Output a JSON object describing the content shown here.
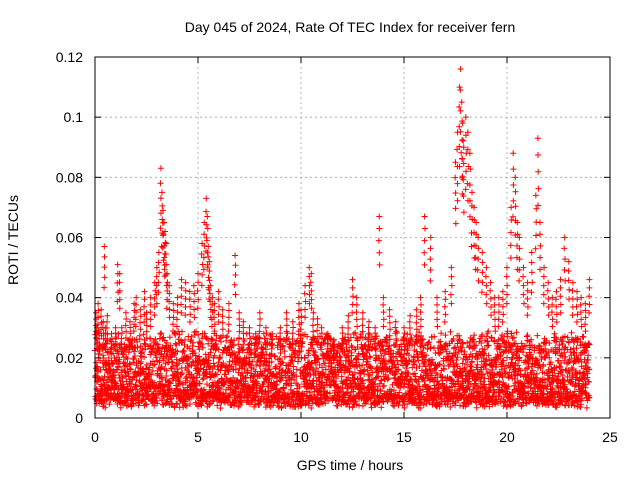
{
  "chart_data": {
    "type": "scatter",
    "title": "Day 045 of 2024, Rate Of TEC Index for receiver fern",
    "xlabel": "GPS time / hours",
    "ylabel": "ROTI / TECUs",
    "xlim": [
      0,
      25
    ],
    "ylim": [
      0,
      0.12
    ],
    "xticks": [
      0,
      5,
      10,
      15,
      20,
      25
    ],
    "xtick_labels": [
      "0",
      "5",
      "10",
      "15",
      "20",
      "25"
    ],
    "yticks": [
      0,
      0.02,
      0.04,
      0.06,
      0.08,
      0.1,
      0.12
    ],
    "ytick_labels": [
      "0",
      "0.02",
      "0.04",
      "0.06",
      "0.08",
      "0.1",
      "0.12"
    ],
    "grid": true,
    "marker": "+",
    "color": "#ff0000",
    "series": [
      {
        "x": [
          0.05,
          0.1,
          0.15,
          0.2,
          0.3,
          0.4,
          0.45,
          0.5,
          0.6,
          0.8,
          1.0,
          1.1,
          1.2,
          1.3,
          1.5,
          1.7,
          1.9,
          2.0,
          2.2,
          2.4,
          2.5,
          2.7,
          2.9,
          3.0,
          3.1,
          3.2,
          3.25,
          3.3,
          3.35,
          3.4,
          3.45,
          3.5,
          3.6,
          3.8,
          4.0,
          4.2,
          4.4,
          4.6,
          4.8,
          5.0,
          5.2,
          5.3,
          5.4,
          5.45,
          5.5,
          5.55,
          5.6,
          5.7,
          5.8,
          6.0,
          6.2,
          6.5,
          6.8,
          7.0,
          7.2,
          7.5,
          7.8,
          8.0,
          8.3,
          8.6,
          9.0,
          9.3,
          9.6,
          9.9,
          10.0,
          10.2,
          10.4,
          10.5,
          10.6,
          10.8,
          11.0,
          11.3,
          11.6,
          12.0,
          12.3,
          12.5,
          12.7,
          13.0,
          13.3,
          13.6,
          13.8,
          14.0,
          14.3,
          14.6,
          15.0,
          15.3,
          15.6,
          15.8,
          16.0,
          16.3,
          16.6,
          17.0,
          17.3,
          17.5,
          17.6,
          17.7,
          17.75,
          17.8,
          17.85,
          17.9,
          18.0,
          18.1,
          18.2,
          18.3,
          18.4,
          18.5,
          18.6,
          18.8,
          19.0,
          19.2,
          19.4,
          19.6,
          19.8,
          20.0,
          20.2,
          20.3,
          20.4,
          20.5,
          20.6,
          20.8,
          21.0,
          21.2,
          21.4,
          21.5,
          21.6,
          21.8,
          22.0,
          22.2,
          22.4,
          22.6,
          22.8,
          23.0,
          23.2,
          23.4,
          23.6,
          23.8,
          24.0
        ],
        "y": [
          0.035,
          0.03,
          0.038,
          0.028,
          0.036,
          0.032,
          0.057,
          0.03,
          0.034,
          0.028,
          0.03,
          0.051,
          0.048,
          0.03,
          0.035,
          0.032,
          0.038,
          0.04,
          0.036,
          0.042,
          0.035,
          0.04,
          0.045,
          0.05,
          0.055,
          0.083,
          0.075,
          0.069,
          0.065,
          0.062,
          0.058,
          0.048,
          0.044,
          0.038,
          0.04,
          0.046,
          0.045,
          0.042,
          0.044,
          0.048,
          0.058,
          0.065,
          0.073,
          0.067,
          0.057,
          0.052,
          0.044,
          0.04,
          0.038,
          0.042,
          0.036,
          0.038,
          0.054,
          0.035,
          0.032,
          0.03,
          0.028,
          0.035,
          0.03,
          0.028,
          0.03,
          0.035,
          0.032,
          0.038,
          0.036,
          0.044,
          0.05,
          0.048,
          0.035,
          0.033,
          0.03,
          0.028,
          0.026,
          0.03,
          0.034,
          0.046,
          0.04,
          0.035,
          0.032,
          0.03,
          0.067,
          0.04,
          0.036,
          0.032,
          0.03,
          0.034,
          0.036,
          0.04,
          0.067,
          0.06,
          0.04,
          0.042,
          0.05,
          0.085,
          0.095,
          0.11,
          0.116,
          0.105,
          0.098,
          0.09,
          0.1,
          0.095,
          0.088,
          0.075,
          0.07,
          0.065,
          0.06,
          0.055,
          0.05,
          0.045,
          0.04,
          0.04,
          0.042,
          0.05,
          0.07,
          0.088,
          0.08,
          0.065,
          0.06,
          0.05,
          0.045,
          0.055,
          0.074,
          0.093,
          0.065,
          0.05,
          0.045,
          0.04,
          0.042,
          0.046,
          0.06,
          0.052,
          0.045,
          0.042,
          0.04,
          0.038,
          0.046
        ]
      }
    ],
    "dense_band": {
      "x_range": [
        0,
        24
      ],
      "baseline": 0.008,
      "spread": 0.022,
      "points_per_hour": 170
    }
  }
}
